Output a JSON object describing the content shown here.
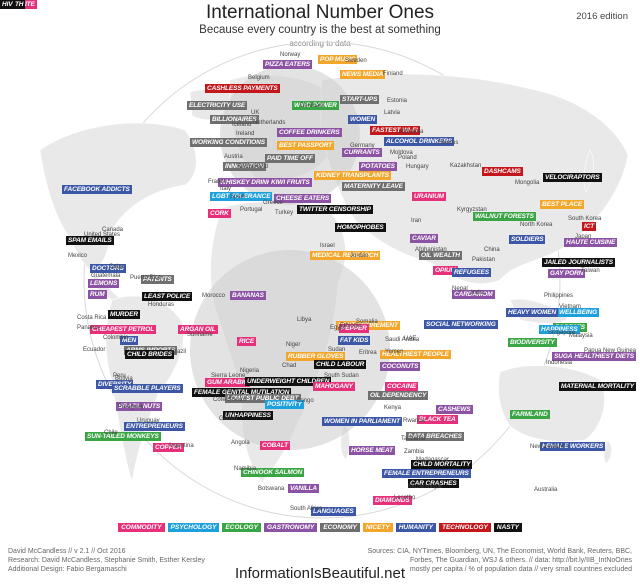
{
  "header": {
    "title": "International Number Ones",
    "subtitle": "Because every country is the best at something",
    "byline": "according to data",
    "edition": "2016 edition"
  },
  "colors": {
    "commodity": "#e6317a",
    "psychology": "#1ea0dc",
    "ecology": "#3aa544",
    "gastronomy": "#8c52a3",
    "economy": "#6f6f6f",
    "nicety": "#f2a62a",
    "humanity": "#3c57a6",
    "technology": "#c4171c",
    "nasty": "#111111"
  },
  "legend": [
    {
      "label": "COMMODITY",
      "cat": "commodity"
    },
    {
      "label": "PSYCHOLOGY",
      "cat": "psychology"
    },
    {
      "label": "ECOLOGY",
      "cat": "ecology"
    },
    {
      "label": "GASTRONOMY",
      "cat": "gastronomy"
    },
    {
      "label": "ECONOMY",
      "cat": "economy"
    },
    {
      "label": "NICETY",
      "cat": "nicety"
    },
    {
      "label": "HUMANITY",
      "cat": "humanity"
    },
    {
      "label": "TECHNOLOGY",
      "cat": "technology"
    },
    {
      "label": "NASTY",
      "cat": "nasty"
    }
  ],
  "labels": [
    {
      "text": "PIZZA EATERS",
      "cat": "gastronomy"
    },
    {
      "text": "POP MUSIC",
      "cat": "nicety"
    },
    {
      "text": "NEWS MEDIA",
      "cat": "nicety"
    },
    {
      "text": "CASHLESS PAYMENTS",
      "cat": "technology"
    },
    {
      "text": "ELECTRICITY USE",
      "cat": "economy"
    },
    {
      "text": "WIND POWER",
      "cat": "ecology"
    },
    {
      "text": "START-UPS",
      "cat": "economy"
    },
    {
      "text": "BILLIONAIRES",
      "cat": "economy"
    },
    {
      "text": "WOMEN",
      "cat": "humanity"
    },
    {
      "text": "FASTEST WI-FI",
      "cat": "technology"
    },
    {
      "text": "COFFEE DRINKERS",
      "cat": "gastronomy"
    },
    {
      "text": "ALCOHOL DRINKERS",
      "cat": "humanity"
    },
    {
      "text": "WORKING CONDITIONS",
      "cat": "economy"
    },
    {
      "text": "BEST PASSPORT",
      "cat": "nicety"
    },
    {
      "text": "PAID TIME OFF",
      "cat": "economy"
    },
    {
      "text": "CURRANTS",
      "cat": "gastronomy"
    },
    {
      "text": "POTATOES",
      "cat": "gastronomy"
    },
    {
      "text": "DASHCAMS",
      "cat": "technology"
    },
    {
      "text": "INNOVATION",
      "cat": "economy"
    },
    {
      "text": "KIDNEY TRANSPLANTS",
      "cat": "nicety"
    },
    {
      "text": "FACEBOOK ADDICTS",
      "cat": "humanity"
    },
    {
      "text": "WHISKEY DRINKERS",
      "cat": "gastronomy"
    },
    {
      "text": "KIWI FRUITS",
      "cat": "gastronomy"
    },
    {
      "text": "MATERNITY LEAVE",
      "cat": "economy"
    },
    {
      "text": "URANIUM",
      "cat": "commodity"
    },
    {
      "text": "VELOCIRAPTORS",
      "cat": "nasty"
    },
    {
      "text": "LGBT TOLERANCE",
      "cat": "psychology"
    },
    {
      "text": "CHEESE EATERS",
      "cat": "gastronomy"
    },
    {
      "text": "TWITTER CENSORSHIP",
      "cat": "nasty"
    },
    {
      "text": "CORK",
      "cat": "commodity"
    },
    {
      "text": "WALNUT FORESTS",
      "cat": "ecology"
    },
    {
      "text": "BEST PLACE",
      "cat": "nicety"
    },
    {
      "text": "ICT",
      "cat": "technology"
    },
    {
      "text": "SPAM EMAILS",
      "cat": "nasty"
    },
    {
      "text": "HOMOPHOBES",
      "cat": "nasty"
    },
    {
      "text": "CAVIAR",
      "cat": "gastronomy"
    },
    {
      "text": "SOLDIERS",
      "cat": "humanity"
    },
    {
      "text": "HAUTE CUISINE",
      "cat": "gastronomy"
    },
    {
      "text": "MEDICAL RESEARCH",
      "cat": "nicety"
    },
    {
      "text": "OIL WEALTH",
      "cat": "economy"
    },
    {
      "text": "OPIUM",
      "cat": "commodity"
    },
    {
      "text": "JAILED JOURNALISTS",
      "cat": "nasty"
    },
    {
      "text": "DOCTORS",
      "cat": "humanity"
    },
    {
      "text": "LEMONS",
      "cat": "gastronomy"
    },
    {
      "text": "REFUGEES",
      "cat": "humanity"
    },
    {
      "text": "GAY PORN",
      "cat": "gastronomy"
    },
    {
      "text": "PATENTS",
      "cat": "economy"
    },
    {
      "text": "RUM",
      "cat": "gastronomy"
    },
    {
      "text": "CARDAMOM",
      "cat": "gastronomy"
    },
    {
      "text": "LEAST POLICE",
      "cat": "nasty"
    },
    {
      "text": "BANANAS",
      "cat": "gastronomy"
    },
    {
      "text": "MURDER",
      "cat": "nasty"
    },
    {
      "text": "ARGAN OIL",
      "cat": "commodity"
    },
    {
      "text": "CHEAPEST PETROL",
      "cat": "commodity"
    },
    {
      "text": "WELLBEING",
      "cat": "psychology"
    },
    {
      "text": "FORESTS",
      "cat": "ecology"
    },
    {
      "text": "BEST RETIREMENT",
      "cat": "nicety"
    },
    {
      "text": "PEPPER",
      "cat": "commodity"
    },
    {
      "text": "SOCIAL NETWORKING",
      "cat": "humanity"
    },
    {
      "text": "FAT KIDS",
      "cat": "humanity"
    },
    {
      "text": "HEAVY WOMEN",
      "cat": "humanity"
    },
    {
      "text": "MEN",
      "cat": "humanity"
    },
    {
      "text": "ARMS IMPORTS",
      "cat": "economy"
    },
    {
      "text": "RICE",
      "cat": "commodity"
    },
    {
      "text": "HAPPINESS",
      "cat": "psychology"
    },
    {
      "text": "BIODIVERSITY",
      "cat": "ecology"
    },
    {
      "text": "CHILD BRIDES",
      "cat": "nasty"
    },
    {
      "text": "RUBBER GLOVES",
      "cat": "nicety"
    },
    {
      "text": "HEALTHIEST PEOPLE",
      "cat": "nicety"
    },
    {
      "text": "SUGAR",
      "cat": "gastronomy"
    },
    {
      "text": "HEALTHIEST DIETS",
      "cat": "gastronomy"
    },
    {
      "text": "CHILD LABOUR",
      "cat": "nasty"
    },
    {
      "text": "COCONUTS",
      "cat": "gastronomy"
    },
    {
      "text": "DIVERSITY",
      "cat": "humanity"
    },
    {
      "text": "GUM ARABIC",
      "cat": "commodity"
    },
    {
      "text": "UNDERWEIGHT CHILDREN",
      "cat": "nasty"
    },
    {
      "text": "COCAINE",
      "cat": "commodity"
    },
    {
      "text": "MATERNAL MORTALITY",
      "cat": "nasty"
    },
    {
      "text": "SCRABBLE PLAYERS",
      "cat": "humanity"
    },
    {
      "text": "FEMALE GENITAL MUTILATION",
      "cat": "nasty"
    },
    {
      "text": "MAHOGANY",
      "cat": "commodity"
    },
    {
      "text": "BRAZIL NUTS",
      "cat": "gastronomy"
    },
    {
      "text": "LOWEST PUBLIC DEBT",
      "cat": "economy"
    },
    {
      "text": "OIL DEPENDENCY",
      "cat": "economy"
    },
    {
      "text": "POSITIVITY",
      "cat": "psychology"
    },
    {
      "text": "CASHEWS",
      "cat": "gastronomy"
    },
    {
      "text": "ENTREPRENEURS",
      "cat": "humanity"
    },
    {
      "text": "UNHAPPINESS",
      "cat": "nasty"
    },
    {
      "text": "BLACK TEA",
      "cat": "commodity"
    },
    {
      "text": "FARMLAND",
      "cat": "ecology"
    },
    {
      "text": "SUN-TAILED MONKEYS",
      "cat": "ecology"
    },
    {
      "text": "WOMEN IN PARLIAMENT",
      "cat": "humanity"
    },
    {
      "text": "DATA BREACHES",
      "cat": "economy"
    },
    {
      "text": "COPPER",
      "cat": "commodity"
    },
    {
      "text": "COBALT",
      "cat": "commodity"
    },
    {
      "text": "FEMALE WORKERS",
      "cat": "humanity"
    },
    {
      "text": "HORSE MEAT",
      "cat": "gastronomy"
    },
    {
      "text": "CHILD MORTALITY",
      "cat": "nasty"
    },
    {
      "text": "CHINOOK SALMON",
      "cat": "ecology"
    },
    {
      "text": "FEMALE ENTREPRENEURS",
      "cat": "humanity"
    },
    {
      "text": "VANILLA",
      "cat": "gastronomy"
    },
    {
      "text": "CAR CRASHES",
      "cat": "nasty"
    },
    {
      "text": "LANGUAGES",
      "cat": "humanity"
    },
    {
      "text": "DIAMONDS",
      "cat": "commodity"
    },
    {
      "text": "GRAPHITE",
      "cat": "commodity"
    },
    {
      "text": "DEATH",
      "cat": "nasty"
    },
    {
      "text": "HIV",
      "cat": "nasty"
    }
  ],
  "countries": [
    "Norway",
    "Sweden",
    "Finland",
    "Belgium",
    "Estonia",
    "UK",
    "Denmark",
    "Latvia",
    "Iceland",
    "Lithuania",
    "Ireland",
    "Belarus",
    "Netherlands",
    "Austria",
    "Germany",
    "Poland",
    "Hungary",
    "Switzerland",
    "Moldova",
    "France",
    "Italy",
    "Spain",
    "Greece",
    "Portugal",
    "Turkey",
    "Kazakhstan",
    "Mongolia",
    "Kyrgyzstan",
    "United States",
    "North Korea",
    "South Korea",
    "Japan",
    "Iran",
    "Afghanistan",
    "Israel",
    "China",
    "Canada",
    "Cuba",
    "Mexico",
    "Jordan",
    "Pakistan",
    "Taiwan",
    "Guatemala",
    "Puerto Rico",
    "Honduras",
    "Costa Rica",
    "Panama",
    "Morocco",
    "Nepal",
    "India",
    "Philippines",
    "Vietnam",
    "Suriname",
    "Libya",
    "Egypt",
    "Colombia",
    "Ecuador",
    "Niger",
    "UAE",
    "Saudi Arabia",
    "Malaysia",
    "Singapore",
    "Chad",
    "Yemen",
    "Eritrea",
    "Sierra Leone",
    "Sudan",
    "Indonesia",
    "Papua New Guinea",
    "Brazil",
    "Peru",
    "Bolivia",
    "Nigeria",
    "South Sudan",
    "Côte d'Ivoire",
    "Paraguay",
    "Congo",
    "Kenya",
    "Uruguay",
    "Gabon",
    "Rwanda",
    "Chile",
    "Argentina",
    "Tanzania",
    "Angola",
    "Zambia",
    "Madagascar",
    "Namibia",
    "New Zealand",
    "Botswana",
    "Mozambique",
    "South Africa",
    "Australia",
    "Lesotho",
    "Somalia",
    "Ethiopia"
  ],
  "credits": [
    "David McCandless // v 2.1 // Oct 2016",
    "Research: David McCandless, Stephanie Smith, Esther Kersley",
    "Additional Design: Fabio Bergamaschi"
  ],
  "sources": [
    "Sources: CIA, NYTimes, Bloomberg, UN, The Economist, World Bank, Reuters, BBC,",
    "Forbes, The Guardian, WSJ & others. // data: http://bit.ly/IIB_IntNoOnes",
    "mostly per capita / % of population data // very small countries excluded"
  ],
  "site": "InformationIsBeautiful.net"
}
